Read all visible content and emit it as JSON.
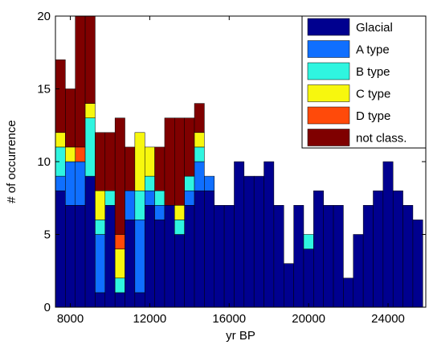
{
  "chart_data": {
    "type": "bar",
    "stacked": true,
    "xlabel": "yr BP",
    "ylabel": "# of occurrence",
    "xlim": [
      7250,
      25900
    ],
    "ylim": [
      0,
      20
    ],
    "x_ticks": [
      8000,
      12000,
      16000,
      20000,
      24000
    ],
    "y_ticks": [
      0,
      5,
      10,
      15,
      20
    ],
    "bin_width": 500,
    "legend_position": "top-right",
    "x": [
      7500,
      8000,
      8500,
      9000,
      9500,
      10000,
      10500,
      11000,
      11500,
      12000,
      12500,
      13000,
      13500,
      14000,
      14500,
      15000,
      15500,
      16000,
      16500,
      17000,
      17500,
      18000,
      18500,
      19000,
      19500,
      20000,
      20500,
      21000,
      21500,
      22000,
      22500,
      23000,
      23500,
      24000,
      24500,
      25000,
      25500
    ],
    "series": [
      {
        "name": "Glacial",
        "color": "#00008f",
        "values": [
          8,
          7,
          7,
          9,
          1,
          7,
          1,
          6,
          1,
          7,
          6,
          7,
          5,
          7,
          8,
          8,
          7,
          7,
          10,
          9,
          9,
          10,
          7,
          3,
          7,
          4,
          8,
          7,
          7,
          2,
          5,
          7,
          8,
          10,
          8,
          7,
          6
        ]
      },
      {
        "name": "A type",
        "color": "#0f6fff",
        "values": [
          1,
          3,
          3,
          0,
          4,
          0,
          0,
          2,
          5,
          1,
          1,
          0,
          0,
          1,
          2,
          1,
          0,
          0,
          0,
          0,
          0,
          0,
          0,
          0,
          0,
          0,
          0,
          0,
          0,
          0,
          0,
          0,
          0,
          0,
          0,
          0,
          0
        ]
      },
      {
        "name": "B type",
        "color": "#2ff5e0",
        "values": [
          2,
          0,
          0,
          4,
          1,
          1,
          1,
          0,
          2,
          1,
          1,
          0,
          1,
          1,
          1,
          0,
          0,
          0,
          0,
          0,
          0,
          0,
          0,
          0,
          0,
          1,
          0,
          0,
          0,
          0,
          0,
          0,
          0,
          0,
          0,
          0,
          0
        ]
      },
      {
        "name": "C type",
        "color": "#f7f70e",
        "values": [
          1,
          1,
          0,
          1,
          2,
          0,
          2,
          0,
          4,
          2,
          0,
          0,
          1,
          0,
          1,
          0,
          0,
          0,
          0,
          0,
          0,
          0,
          0,
          0,
          0,
          0,
          0,
          0,
          0,
          0,
          0,
          0,
          0,
          0,
          0,
          0,
          0
        ]
      },
      {
        "name": "D type",
        "color": "#ff4a0a",
        "values": [
          0,
          0,
          1,
          0,
          0,
          0,
          1,
          0,
          0,
          0,
          0,
          0,
          0,
          0,
          0,
          0,
          0,
          0,
          0,
          0,
          0,
          0,
          0,
          0,
          0,
          0,
          0,
          0,
          0,
          0,
          0,
          0,
          0,
          0,
          0,
          0,
          0
        ]
      },
      {
        "name": "not class.",
        "color": "#7f0000",
        "values": [
          5,
          4,
          9,
          6,
          4,
          4,
          8,
          3,
          0,
          0,
          3,
          6,
          6,
          4,
          2,
          0,
          0,
          0,
          0,
          0,
          0,
          0,
          0,
          0,
          0,
          0,
          0,
          0,
          0,
          0,
          0,
          0,
          0,
          0,
          0,
          0,
          0
        ]
      }
    ]
  }
}
